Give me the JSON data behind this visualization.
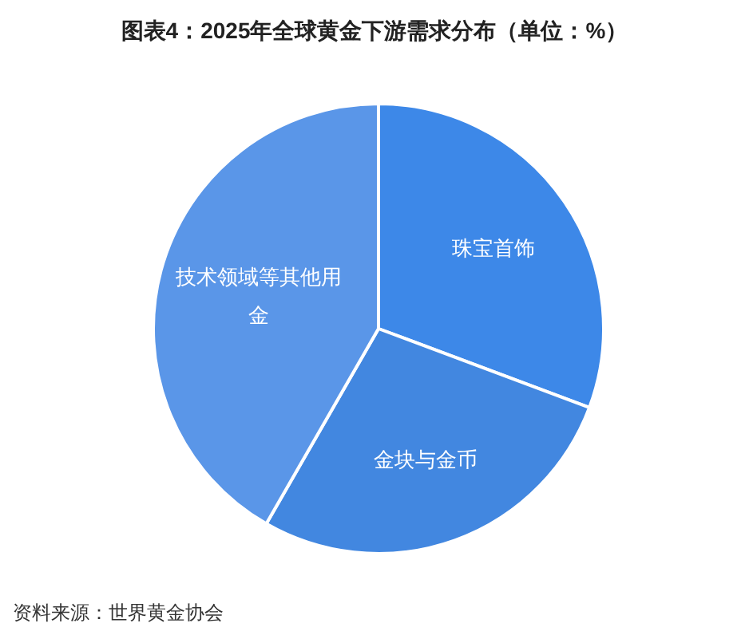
{
  "chart_data": {
    "type": "pie",
    "title": "图表4：2025年全球黄金下游需求分布（单位：%）",
    "categories": [
      "珠宝首饰",
      "金块与金币",
      "技术领域等其他用金"
    ],
    "values": [
      30.7,
      27.6,
      41.7
    ],
    "colors": [
      "#3d88e8",
      "#4287e0",
      "#5a96e8"
    ],
    "legend": false,
    "annotations": [
      "资料来源：世界黄金协会"
    ]
  }
}
